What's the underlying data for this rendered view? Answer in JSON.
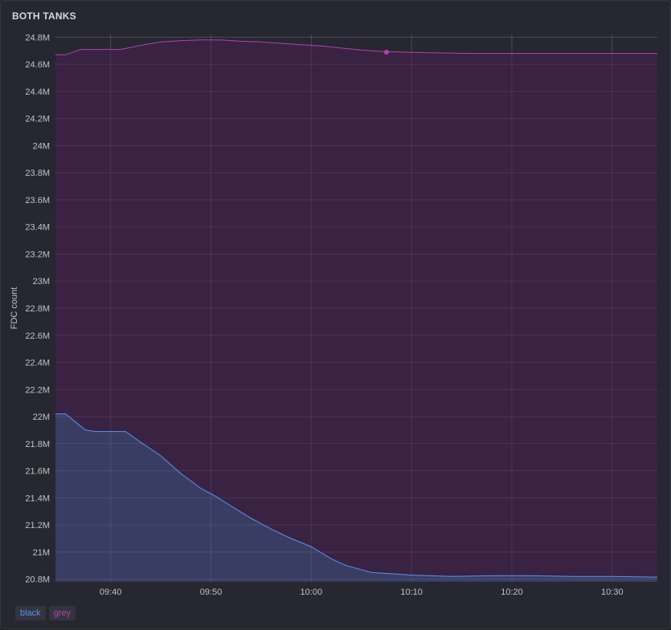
{
  "panel": {
    "title": "BOTH TANKS"
  },
  "chart_data": {
    "type": "area",
    "ylabel": "FDC count",
    "xlabel": "",
    "ylim": [
      20.78,
      24.82
    ],
    "xlim": [
      "09:34:30",
      "10:34:30"
    ],
    "yticks": [
      20.8,
      21.0,
      21.2,
      21.4,
      21.6,
      21.8,
      22.0,
      22.2,
      22.4,
      22.6,
      22.8,
      23.0,
      23.2,
      23.4,
      23.6,
      23.8,
      24.0,
      24.2,
      24.4,
      24.6,
      24.8
    ],
    "ytick_labels": [
      "20.8M",
      "21M",
      "21.2M",
      "21.4M",
      "21.6M",
      "21.8M",
      "22M",
      "22.2M",
      "22.4M",
      "22.6M",
      "22.8M",
      "23M",
      "23.2M",
      "23.4M",
      "23.6M",
      "23.8M",
      "24M",
      "24.2M",
      "24.4M",
      "24.6M",
      "24.8M"
    ],
    "xticks": [
      "09:40",
      "09:50",
      "10:00",
      "10:10",
      "10:20",
      "10:30"
    ],
    "grid": true,
    "legend_position": "bottom-left",
    "series": [
      {
        "name": "black",
        "color": "#5794f2",
        "fill": "#3b4066",
        "points": [
          [
            "09:34:30",
            22.02
          ],
          [
            "09:35:30",
            22.02
          ],
          [
            "09:36:30",
            21.96
          ],
          [
            "09:37:30",
            21.9
          ],
          [
            "09:38:30",
            21.89
          ],
          [
            "09:40:00",
            21.89
          ],
          [
            "09:41:30",
            21.89
          ],
          [
            "09:43:00",
            21.81
          ],
          [
            "09:45:00",
            21.71
          ],
          [
            "09:47:00",
            21.58
          ],
          [
            "09:49:00",
            21.47
          ],
          [
            "09:50:30",
            21.41
          ],
          [
            "09:52:00",
            21.34
          ],
          [
            "09:54:00",
            21.25
          ],
          [
            "09:56:00",
            21.17
          ],
          [
            "09:58:00",
            21.1
          ],
          [
            "10:00:00",
            21.04
          ],
          [
            "10:02:00",
            20.95
          ],
          [
            "10:03:30",
            20.9
          ],
          [
            "10:05:00",
            20.87
          ],
          [
            "10:06:00",
            20.85
          ],
          [
            "10:08:00",
            20.84
          ],
          [
            "10:10:00",
            20.83
          ],
          [
            "10:14:00",
            20.82
          ],
          [
            "10:18:00",
            20.825
          ],
          [
            "10:22:00",
            20.825
          ],
          [
            "10:26:00",
            20.82
          ],
          [
            "10:30:00",
            20.82
          ],
          [
            "10:34:30",
            20.815
          ]
        ]
      },
      {
        "name": "grey",
        "color": "#b341b3",
        "fill": "#3b2244",
        "points": [
          [
            "09:34:30",
            24.67
          ],
          [
            "09:35:30",
            24.67
          ],
          [
            "09:37:00",
            24.71
          ],
          [
            "09:39:00",
            24.71
          ],
          [
            "09:41:00",
            24.71
          ],
          [
            "09:43:00",
            24.74
          ],
          [
            "09:45:00",
            24.765
          ],
          [
            "09:47:00",
            24.775
          ],
          [
            "09:49:00",
            24.78
          ],
          [
            "09:51:00",
            24.78
          ],
          [
            "09:53:00",
            24.77
          ],
          [
            "09:55:00",
            24.765
          ],
          [
            "09:57:00",
            24.755
          ],
          [
            "09:59:00",
            24.745
          ],
          [
            "10:01:00",
            24.735
          ],
          [
            "10:03:00",
            24.72
          ],
          [
            "10:05:00",
            24.705
          ],
          [
            "10:07:00",
            24.695
          ],
          [
            "10:09:00",
            24.69
          ],
          [
            "10:12:00",
            24.685
          ],
          [
            "10:16:00",
            24.68
          ],
          [
            "10:20:00",
            24.68
          ],
          [
            "10:24:00",
            24.68
          ],
          [
            "10:28:00",
            24.68
          ],
          [
            "10:30:00",
            24.68
          ],
          [
            "10:34:30",
            24.68
          ]
        ],
        "highlight_point": [
          "10:07:30",
          24.69
        ]
      }
    ]
  }
}
